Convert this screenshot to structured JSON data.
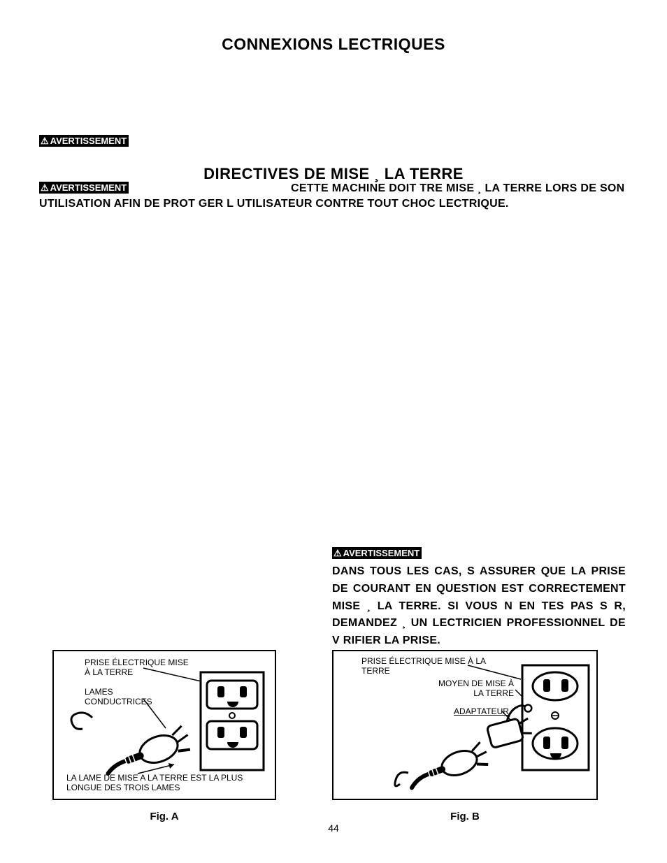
{
  "title": "CONNEXIONS  LECTRIQUES",
  "warning_label": "AVERTISSEMENT",
  "subtitle": "DIRECTIVES DE MISE ¸ LA TERRE",
  "ground_text": "CETTE MACHINE DOIT  TRE MISE ¸ LA TERRE LORS DE SON UTILISATION AFIN DE PROT GER L UTILISATEUR CONTRE TOUT CHOC  LECTRIQUE.",
  "warn_text": "DANS TOUS LES CAS, S ASSURER QUE LA PRISE DE COURANT EN QUESTION EST CORRECTEMENT MISE ¸ LA TERRE. SI VOUS N EN  TES PAS S R, DEMANDEZ ¸ UN  LECTRICIEN PROFESSIONNEL DE V RIFIER LA PRISE.",
  "figA": {
    "caption": "Fig. A",
    "label_outlet": "PRISE ÉLECTRIQUE MISE\nÀ LA TERRE",
    "label_blades": "LAMES\nCONDUCTRICES",
    "label_ground": "LA LAME DE MISE A LA TERRE EST LA PLUS LONGUE DES TROIS LAMES"
  },
  "figB": {
    "caption": "Fig. B",
    "label_outlet": "PRISE ÉLECTRIQUE MISE À LA\nTERRE",
    "label_ground_means": "MOYEN DE MISE À\nLA TERRE",
    "label_adapter": "ADAPTATEUR"
  },
  "page_number": "44",
  "colors": {
    "fg": "#000000",
    "bg": "#ffffff"
  }
}
